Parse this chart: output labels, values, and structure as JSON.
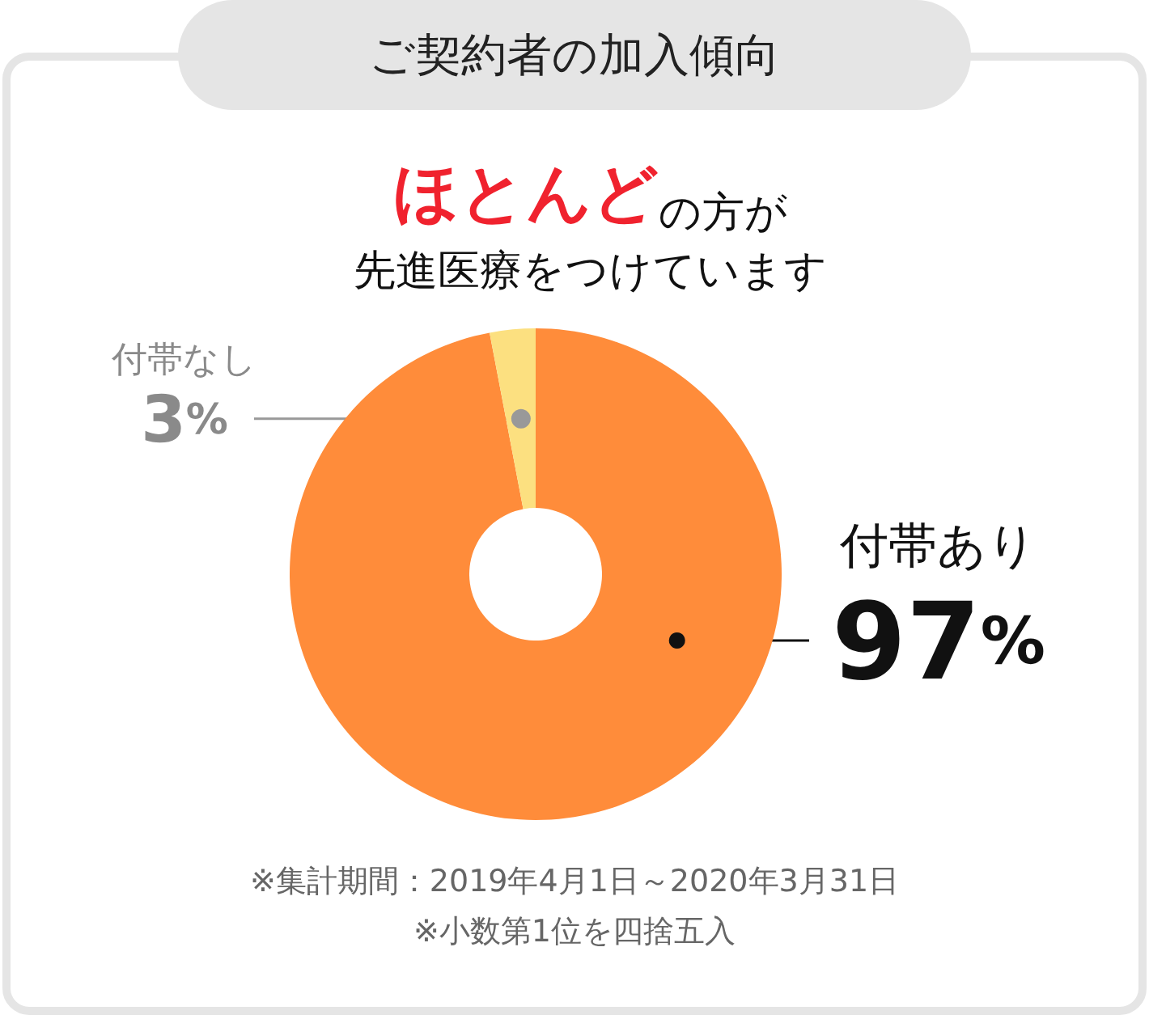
{
  "chart_data": {
    "type": "donut",
    "title": "ご契約者の加入傾向",
    "subtitle": "ほとんどの方が先進医療をつけています",
    "categories": [
      "付帯あり",
      "付帯なし"
    ],
    "values": [
      97,
      3
    ],
    "colors": [
      "#ff8c3a",
      "#fce080"
    ],
    "value_labels": [
      "97%",
      "3%"
    ],
    "annotations": [
      "※集計期間：2019年4月1日～2020年3月31日",
      "※小数第1位を四捨五入"
    ]
  }
}
